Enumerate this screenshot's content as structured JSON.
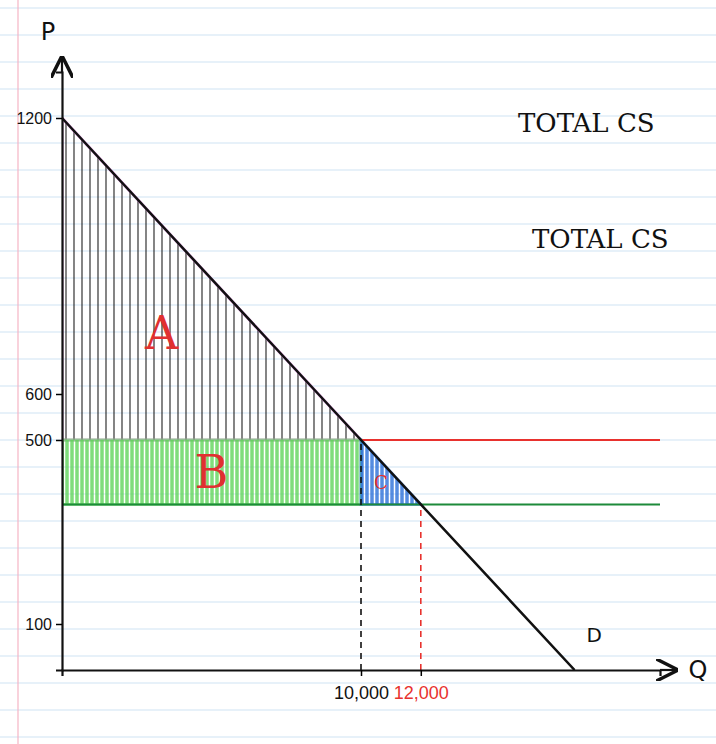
{
  "chart_data": {
    "type": "line",
    "x_label": "Q",
    "y_label": "P",
    "xlim": [
      0,
      20000
    ],
    "ylim": [
      0,
      1300
    ],
    "xticks": [
      {
        "value": 10000,
        "label": "10,000"
      },
      {
        "value": 12000,
        "label": "12,000"
      }
    ],
    "yticks": [
      100,
      500,
      600,
      1200
    ],
    "series": [
      {
        "name": "D",
        "color": "#111111",
        "x": [
          0,
          10000,
          12000,
          17143
        ],
        "values": [
          1200,
          500,
          360,
          0
        ]
      }
    ],
    "hlines": [
      {
        "value": 500,
        "color": "#e8322e",
        "x": [
          10000,
          20000
        ]
      },
      {
        "value": 360,
        "color": "#1d8a3a",
        "x": [
          0,
          20000
        ]
      }
    ],
    "vlines": [
      {
        "value": 10000,
        "color": "#111111",
        "line_style": "dashed",
        "y": [
          0,
          500
        ]
      },
      {
        "value": 12000,
        "color": "#e8322e",
        "line_style": "dashed",
        "y": [
          0,
          360
        ]
      }
    ],
    "regions": [
      {
        "label": "A",
        "color": "#111111",
        "x": [
          0,
          0,
          10000
        ],
        "y": [
          1200,
          500,
          500
        ]
      },
      {
        "label": "B",
        "color": "#5fd45a",
        "x": [
          0,
          10000,
          10000,
          0
        ],
        "y": [
          500,
          500,
          360,
          360
        ]
      },
      {
        "label": "C",
        "color": "#2a6fd8",
        "x": [
          10000,
          12000,
          10000
        ],
        "y": [
          500,
          360,
          360
        ]
      }
    ],
    "annotations": [
      "TOTAL CS",
      "TOTAL CS"
    ],
    "grid": false
  }
}
